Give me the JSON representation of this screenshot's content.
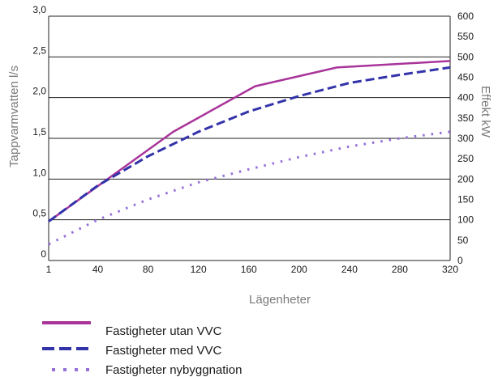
{
  "chart_data": {
    "type": "line",
    "xlabel": "Lägenheter",
    "ylabel": "Tappvarmvatten l/s",
    "y2label": "Effekt kW",
    "xlim": [
      1,
      320
    ],
    "ylim": [
      0,
      3.0
    ],
    "y2lim": [
      0,
      600
    ],
    "x_ticks": [
      1,
      40,
      80,
      120,
      160,
      200,
      240,
      280,
      320
    ],
    "y_ticks": [
      0,
      0.5,
      1.0,
      1.5,
      2.0,
      2.5,
      3.0
    ],
    "y_tick_labels": [
      "0",
      "0,5",
      "1,0",
      "1,5",
      "2,0",
      "2,5",
      "3,0"
    ],
    "y2_ticks": [
      0,
      50,
      100,
      150,
      200,
      250,
      300,
      350,
      400,
      450,
      500,
      550,
      600
    ],
    "grid": "horizontal",
    "legend_position": "bottom",
    "series": [
      {
        "name": "Fastigheter utan VVC",
        "color": "#a8349a",
        "style": "solid",
        "x": [
          1,
          100,
          165,
          230,
          320
        ],
        "y": [
          0.48,
          1.58,
          2.14,
          2.37,
          2.45
        ]
      },
      {
        "name": "Fastigheter med VVC",
        "color": "#3333aa",
        "style": "dashed",
        "x": [
          1,
          40,
          80,
          120,
          160,
          200,
          240,
          280,
          320
        ],
        "y": [
          0.48,
          0.92,
          1.28,
          1.58,
          1.83,
          2.02,
          2.18,
          2.28,
          2.37
        ]
      },
      {
        "name": "Fastigheter nybyggnation",
        "color": "#9470d8",
        "style": "dotted",
        "x": [
          1,
          40,
          80,
          120,
          160,
          200,
          240,
          280,
          320
        ],
        "y": [
          0.2,
          0.5,
          0.75,
          0.96,
          1.12,
          1.27,
          1.4,
          1.5,
          1.58
        ]
      }
    ]
  }
}
